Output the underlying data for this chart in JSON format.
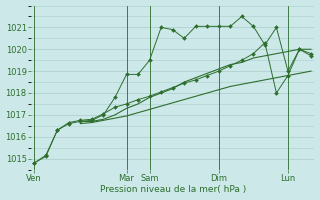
{
  "background_color": "#cce8e8",
  "grid_color": "#aacccc",
  "line_color": "#2d6e2d",
  "xlabel": "Pression niveau de la mer( hPa )",
  "ylim": [
    1014.5,
    1022.0
  ],
  "yticks": [
    1015,
    1016,
    1017,
    1018,
    1019,
    1020,
    1021
  ],
  "day_labels": [
    "Ven",
    "Mar",
    "Sam",
    "Dim",
    "Lun"
  ],
  "day_x": [
    0,
    8,
    10,
    16,
    22
  ],
  "total_points": 25,
  "series1_x": [
    0,
    1,
    2,
    3,
    4,
    5,
    6,
    7,
    8,
    9,
    10,
    11,
    12,
    13,
    14,
    15,
    16,
    17,
    18,
    19,
    20,
    21,
    22,
    23,
    24
  ],
  "series1_y": [
    1014.8,
    1015.1,
    1016.3,
    1016.6,
    1016.7,
    1016.75,
    1017.0,
    1017.8,
    1018.85,
    1018.85,
    1019.5,
    1021.0,
    1020.9,
    1020.5,
    1021.05,
    1021.05,
    1021.05,
    1021.05,
    1021.5,
    1021.05,
    1020.2,
    1021.0,
    1019.0,
    1020.0,
    1019.8
  ],
  "series2_x": [
    4,
    5,
    6,
    7,
    8,
    9,
    10,
    11,
    12,
    13,
    14,
    15,
    16,
    17,
    18,
    19,
    20,
    21,
    22,
    23,
    24
  ],
  "series2_y": [
    1016.7,
    1016.7,
    1016.8,
    1017.0,
    1017.3,
    1017.5,
    1017.8,
    1018.0,
    1018.2,
    1018.5,
    1018.7,
    1018.9,
    1019.1,
    1019.3,
    1019.4,
    1019.6,
    1019.7,
    1019.8,
    1019.9,
    1020.0,
    1020.0
  ],
  "series3_x": [
    4,
    5,
    6,
    7,
    8,
    9,
    10,
    11,
    12,
    13,
    14,
    15,
    16,
    17,
    18,
    19,
    20,
    21,
    22,
    23,
    24
  ],
  "series3_y": [
    1016.6,
    1016.65,
    1016.75,
    1016.85,
    1016.95,
    1017.1,
    1017.25,
    1017.4,
    1017.55,
    1017.7,
    1017.85,
    1018.0,
    1018.15,
    1018.3,
    1018.4,
    1018.5,
    1018.6,
    1018.7,
    1018.8,
    1018.9,
    1019.0
  ],
  "series4_x": [
    0,
    1,
    2,
    3,
    4,
    5,
    6,
    7,
    8,
    9,
    10,
    11,
    12,
    13,
    14,
    15,
    16,
    17,
    18,
    19,
    20,
    21,
    22,
    23,
    24
  ],
  "series4_y": [
    1014.8,
    1015.15,
    1016.3,
    1016.65,
    1016.75,
    1016.8,
    1017.05,
    1017.35,
    1017.5,
    1017.7,
    1017.85,
    1018.05,
    1018.25,
    1018.45,
    1018.6,
    1018.8,
    1019.0,
    1019.25,
    1019.5,
    1019.8,
    1020.3,
    1018.0,
    1018.8,
    1020.0,
    1019.7
  ],
  "ytick_fontsize": 6,
  "xtick_fontsize": 6,
  "xlabel_fontsize": 6.5
}
